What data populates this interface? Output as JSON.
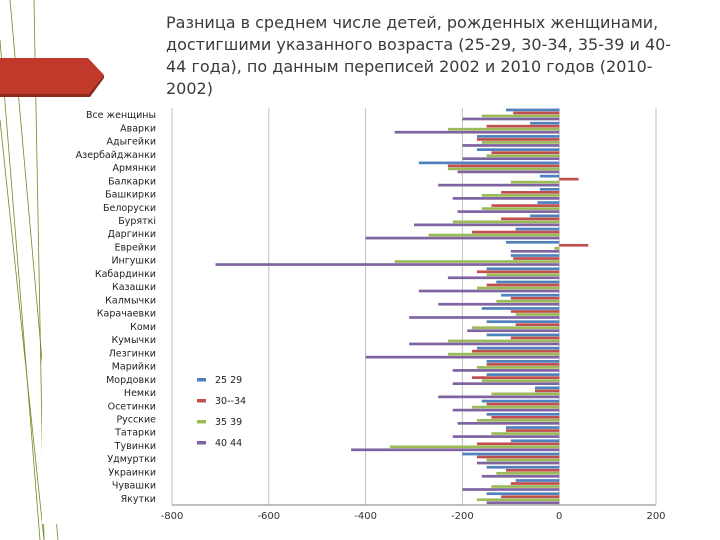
{
  "slide": {
    "title": "Разница в среднем числе детей, рожденных женщинами, достигшими указанного возраста (25-29, 30-34, 35-39 и 40-44 года), по данным переписей 2002 и 2010 годов (2010-2002)"
  },
  "theme": {
    "accent_red": "#c0392b",
    "accent_dark_red": "#8e2a1c",
    "line_green": "#6b8e23"
  },
  "chart_data": {
    "type": "bar",
    "orientation": "horizontal",
    "categories": [
      "Все женщины",
      "Аварки",
      "Адыгейки",
      "Азербайджанки",
      "Армянки",
      "Балкарки",
      "Башкирки",
      "Белоруски",
      "Буряткі",
      "Даргинки",
      "Еврейки",
      "Ингушки",
      "Кабардинки",
      "Казашки",
      "Калмычки",
      "Карачаевки",
      "Коми",
      "Кумычки",
      "Лезгинки",
      "Марийки",
      "Мордовки",
      "Немки",
      "Осетинки",
      "Русские",
      "Татарки",
      "Тувинки",
      "Удмуртки",
      "Украинки",
      "Чувашки",
      "Якутки"
    ],
    "series": [
      {
        "name": "25 29",
        "color": "#4f81bd",
        "values": [
          -110,
          -60,
          -170,
          -170,
          -290,
          -40,
          -40,
          -45,
          -60,
          -90,
          -110,
          -100,
          -150,
          -130,
          -120,
          -160,
          -150,
          -150,
          -170,
          -150,
          -150,
          -50,
          -160,
          -150,
          -110,
          -100,
          -200,
          -150,
          -90,
          -150
        ]
      },
      {
        "name": "30--34",
        "color": "#c0504d",
        "values": [
          -95,
          -150,
          -170,
          -140,
          -230,
          40,
          -120,
          -140,
          -120,
          -180,
          60,
          -95,
          -170,
          -150,
          -100,
          -100,
          -90,
          -100,
          -180,
          -150,
          -180,
          -50,
          -150,
          -140,
          -110,
          -170,
          -170,
          -110,
          -100,
          -120
        ]
      },
      {
        "name": "35 39",
        "color": "#9bbb59",
        "values": [
          -160,
          -230,
          -160,
          -150,
          -230,
          -100,
          -160,
          -160,
          -220,
          -270,
          -10,
          -340,
          -150,
          -170,
          -130,
          -90,
          -180,
          -230,
          -230,
          -170,
          -160,
          -140,
          -180,
          -170,
          -140,
          -350,
          -150,
          -130,
          -140,
          -170
        ]
      },
      {
        "name": "40 44",
        "color": "#8064a2",
        "values": [
          -200,
          -340,
          -200,
          -200,
          -210,
          -250,
          -220,
          -210,
          -300,
          -400,
          -100,
          -710,
          -230,
          -290,
          -250,
          -310,
          -190,
          -310,
          -400,
          -220,
          -220,
          -250,
          -220,
          -210,
          -220,
          -430,
          -170,
          -160,
          -200,
          -150
        ]
      }
    ],
    "xlim": [
      -800,
      200
    ],
    "x_ticks": [
      -800,
      -600,
      -400,
      -200,
      0,
      200
    ],
    "x_tick_labels": [
      "-800",
      "-600",
      "-400",
      "-200",
      "0",
      "200"
    ],
    "grid": "vertical",
    "legend_position": "lower-left inside plot"
  }
}
